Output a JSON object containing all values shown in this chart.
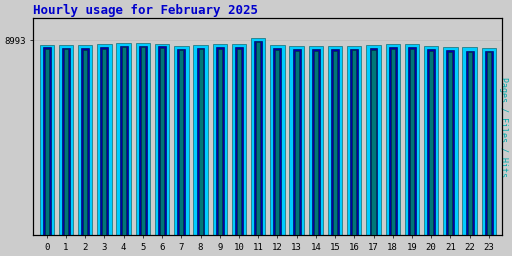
{
  "title": "Hourly usage for February 2025",
  "title_color": "#0000cc",
  "title_fontsize": 9,
  "hours": [
    0,
    1,
    2,
    3,
    4,
    5,
    6,
    7,
    8,
    9,
    10,
    11,
    12,
    13,
    14,
    15,
    16,
    17,
    18,
    19,
    20,
    21,
    22,
    23
  ],
  "hits": [
    8780,
    8760,
    8750,
    8800,
    8870,
    8860,
    8830,
    8720,
    8780,
    8790,
    8800,
    9100,
    8760,
    8720,
    8720,
    8710,
    8740,
    8750,
    8800,
    8810,
    8720,
    8660,
    8650,
    8640
  ],
  "files": [
    8650,
    8630,
    8620,
    8660,
    8740,
    8730,
    8700,
    8590,
    8640,
    8650,
    8660,
    8960,
    8620,
    8580,
    8580,
    8570,
    8600,
    8610,
    8660,
    8670,
    8580,
    8520,
    8510,
    8500
  ],
  "pages": [
    8580,
    8560,
    8550,
    8590,
    8660,
    8650,
    8620,
    8520,
    8570,
    8580,
    8590,
    8880,
    8550,
    8510,
    8510,
    8500,
    8530,
    8540,
    8590,
    8600,
    8510,
    8450,
    8440,
    8430
  ],
  "hits_color": "#00ccff",
  "files_color": "#0000aa",
  "pages_color": "#007777",
  "ylabel": "Pages / Files / Hits",
  "ylabel_color": "#00aaaa",
  "bg_color": "#cccccc",
  "plot_bg_color": "#cccccc",
  "border_color": "#000000",
  "ytick_value": 8993,
  "ylim_min": 0,
  "ylim_max": 9993,
  "bar_width": 0.75
}
